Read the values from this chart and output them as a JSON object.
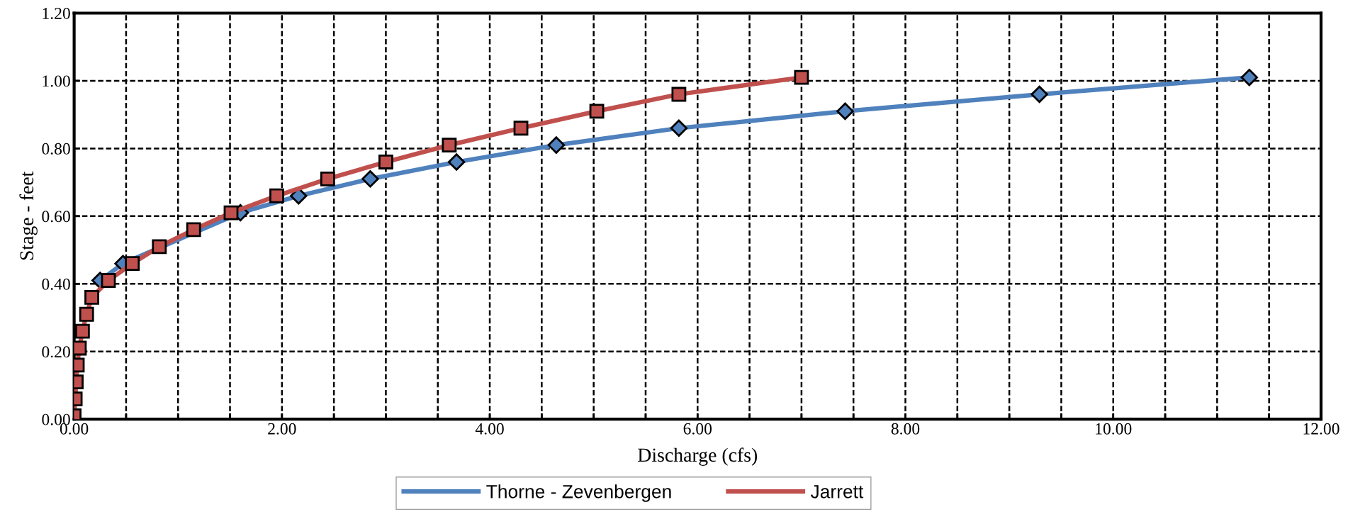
{
  "chart_data": {
    "type": "line",
    "xlabel": "Discharge (cfs)",
    "ylabel": "Stage - feet",
    "xlim": [
      0,
      12
    ],
    "ylim": [
      0,
      1.2
    ],
    "xticks": [
      {
        "value": 0,
        "label": "0.00"
      },
      {
        "value": 0.5,
        "label": null
      },
      {
        "value": 1,
        "label": null
      },
      {
        "value": 1.5,
        "label": null
      },
      {
        "value": 2,
        "label": "2.00"
      },
      {
        "value": 2.5,
        "label": null
      },
      {
        "value": 3,
        "label": null
      },
      {
        "value": 3.5,
        "label": null
      },
      {
        "value": 4,
        "label": "4.00"
      },
      {
        "value": 4.5,
        "label": null
      },
      {
        "value": 5,
        "label": null
      },
      {
        "value": 5.5,
        "label": null
      },
      {
        "value": 6,
        "label": "6.00"
      },
      {
        "value": 6.5,
        "label": null
      },
      {
        "value": 7,
        "label": null
      },
      {
        "value": 7.5,
        "label": null
      },
      {
        "value": 8,
        "label": "8.00"
      },
      {
        "value": 8.5,
        "label": null
      },
      {
        "value": 9,
        "label": null
      },
      {
        "value": 9.5,
        "label": null
      },
      {
        "value": 10,
        "label": "10.00"
      },
      {
        "value": 10.5,
        "label": null
      },
      {
        "value": 11,
        "label": null
      },
      {
        "value": 11.5,
        "label": null
      },
      {
        "value": 12,
        "label": "12.00"
      }
    ],
    "yticks": [
      {
        "value": 0,
        "label": "0.00"
      },
      {
        "value": 0.2,
        "label": "0.20"
      },
      {
        "value": 0.4,
        "label": "0.40"
      },
      {
        "value": 0.6,
        "label": "0.60"
      },
      {
        "value": 0.8,
        "label": "0.80"
      },
      {
        "value": 1.0,
        "label": "1.00"
      },
      {
        "value": 1.2,
        "label": "1.20"
      }
    ],
    "grid": true,
    "legend": "bottom",
    "line_style": "solid",
    "series": [
      {
        "name": "Thorne - Zevenbergen",
        "color": "#4f81bd",
        "marker": "diamond",
        "x": [
          null,
          null,
          null,
          null,
          null,
          null,
          null,
          null,
          0.25,
          0.47,
          null,
          null,
          1.6,
          2.16,
          2.85,
          3.68,
          4.64,
          5.82,
          7.42,
          9.29,
          11.31
        ],
        "values": [
          null,
          null,
          null,
          null,
          null,
          null,
          null,
          null,
          0.41,
          0.46,
          null,
          null,
          0.61,
          0.66,
          0.71,
          0.76,
          0.81,
          0.86,
          0.91,
          0.96,
          1.01
        ]
      },
      {
        "name": "Jarrett",
        "color": "#c0504d",
        "marker": "square",
        "x": [
          0.0,
          0.01,
          0.02,
          0.03,
          0.05,
          0.08,
          0.12,
          0.17,
          0.33,
          0.56,
          0.82,
          1.15,
          1.51,
          1.95,
          2.44,
          3.0,
          3.61,
          4.3,
          5.03,
          5.82,
          7.0
        ],
        "values": [
          0.01,
          0.06,
          0.11,
          0.16,
          0.21,
          0.26,
          0.31,
          0.36,
          0.41,
          0.46,
          0.51,
          0.56,
          0.61,
          0.66,
          0.71,
          0.76,
          0.81,
          0.86,
          0.91,
          0.96,
          1.01
        ]
      }
    ]
  }
}
